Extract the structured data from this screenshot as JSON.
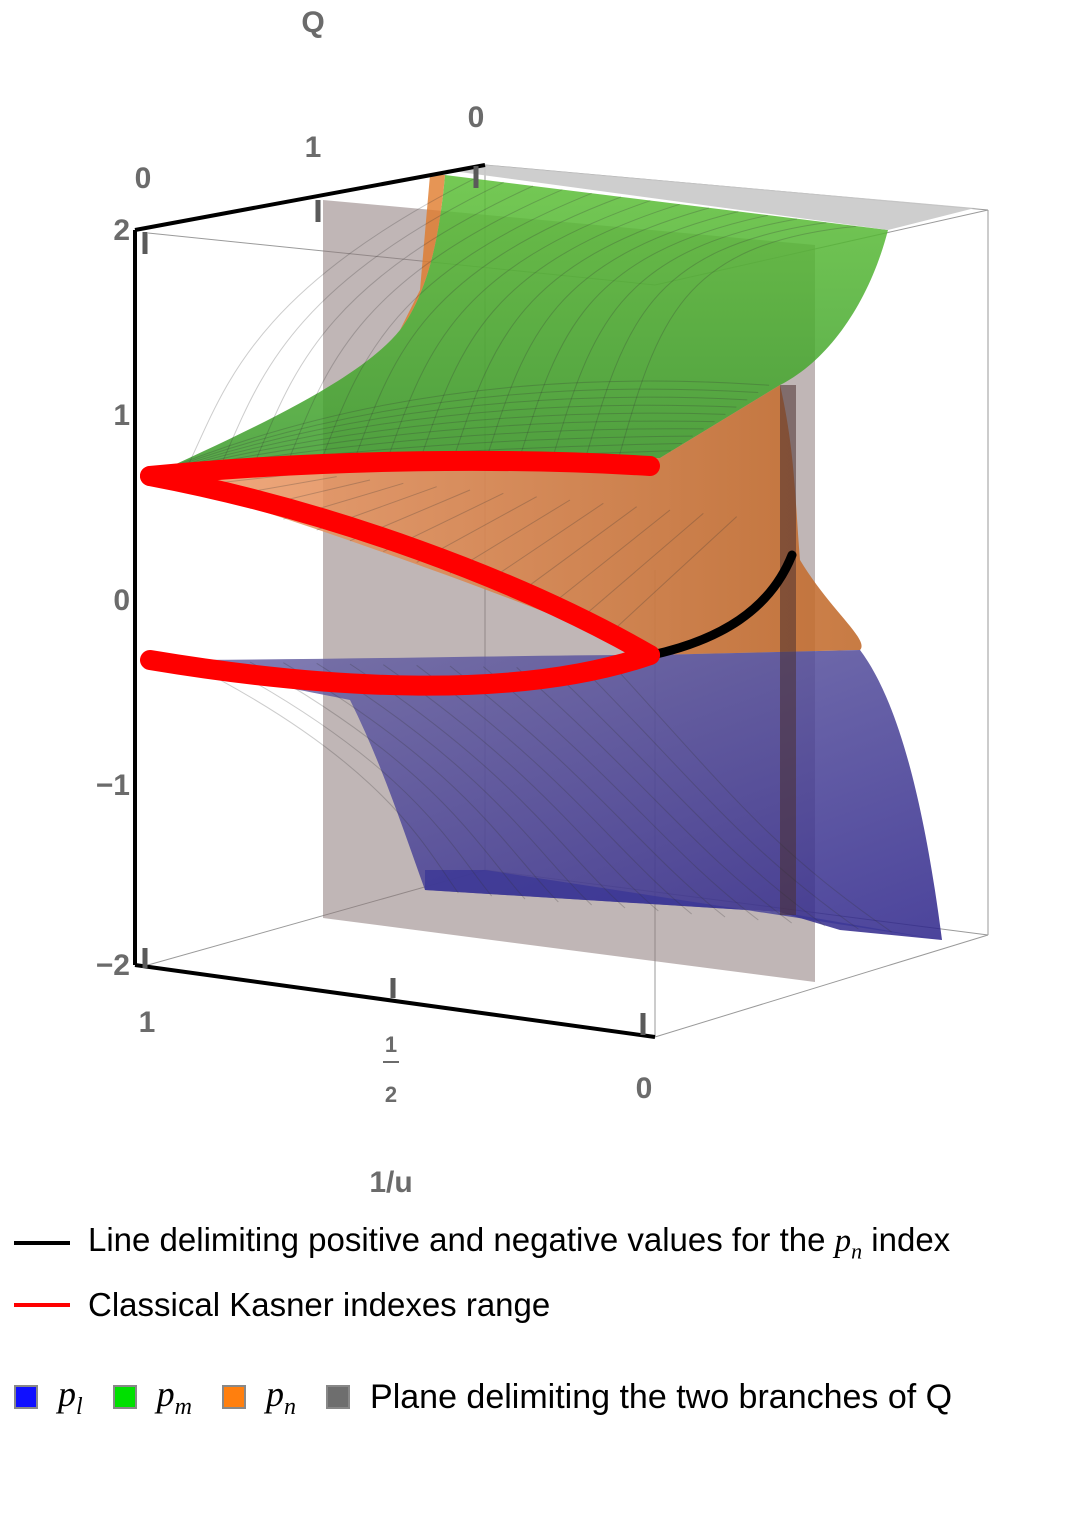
{
  "chart_data": {
    "type": "surface3d",
    "axes": {
      "x": {
        "label": "1/u",
        "ticks": [
          "1",
          "1/2",
          "0"
        ],
        "range": [
          1,
          0
        ]
      },
      "y": {
        "label": "Q",
        "ticks": [
          "0",
          "1",
          "0"
        ]
      },
      "z": {
        "label": "",
        "ticks": [
          "2",
          "1",
          "0",
          "−1",
          "−2"
        ],
        "range": [
          -2,
          2
        ]
      }
    },
    "surfaces": [
      {
        "name": "p_l",
        "color": "#1e1e9c"
      },
      {
        "name": "p_m",
        "color": "#3fae2a"
      },
      {
        "name": "p_n",
        "color": "#e07a2a"
      },
      {
        "name": "Plane delimiting the two branches of Q",
        "color": "#8c7a7a"
      }
    ],
    "curves": [
      {
        "name": "Line delimiting positive and negative values for the p_n index",
        "color": "#000000"
      },
      {
        "name": "Classical Kasner indexes range",
        "color": "#ff0000"
      }
    ]
  },
  "legend": {
    "lines": [
      {
        "text": "Line delimiting positive and negative values for the ",
        "sym": "p",
        "sub": "n",
        "after": " index",
        "color": "#000000"
      },
      {
        "text": "Classical Kasner indexes range",
        "color": "#ff0000"
      }
    ],
    "swatches": [
      {
        "sym": "p",
        "sub": "l",
        "color": "#1010ff"
      },
      {
        "sym": "p",
        "sub": "m",
        "color": "#00e000"
      },
      {
        "sym": "p",
        "sub": "n",
        "color": "#ff7f0e"
      },
      {
        "text": "Plane delimiting the two branches of Q",
        "color": "#6e6e6e"
      }
    ]
  }
}
